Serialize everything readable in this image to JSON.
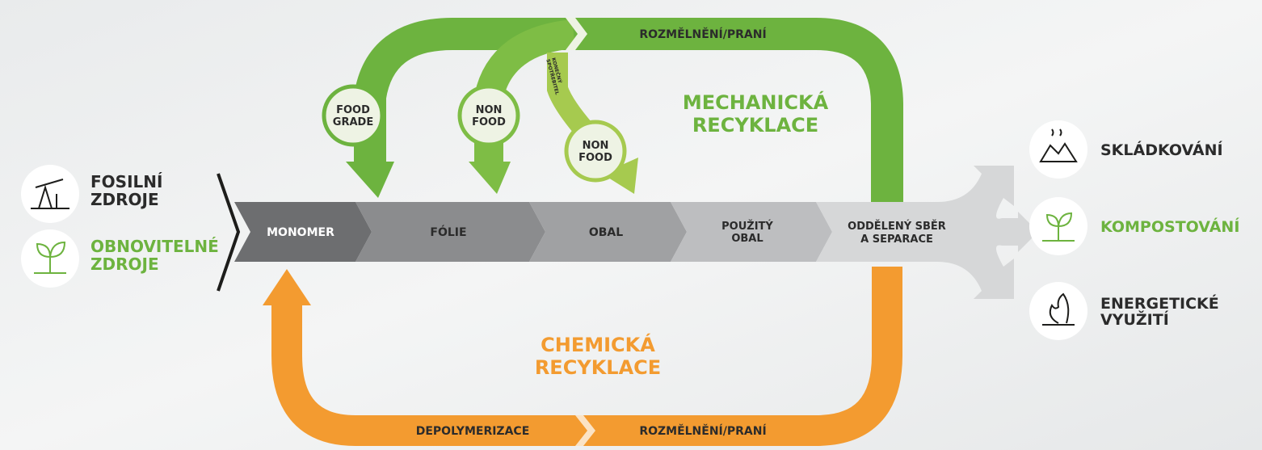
{
  "sources": {
    "fossil": [
      "FOSILNÍ",
      "ZDROJE"
    ],
    "renewable": [
      "OBNOVITELNÉ",
      "ZDROJE"
    ]
  },
  "chain": {
    "monomer": [
      "MONOMER"
    ],
    "foil": [
      "FÓLIE"
    ],
    "package": [
      "OBAL"
    ],
    "used_package": [
      "POUŽITÝ",
      "OBAL"
    ],
    "collection": [
      "ODDĚLENÝ SBĚR",
      "A SEPARACE"
    ]
  },
  "mechanical": {
    "title": [
      "MECHANICKÁ",
      "RECYKLACE"
    ],
    "band_label": "ROZMĚLNĚNÍ/PRANÍ",
    "food_grade": [
      "FOOD",
      "GRADE"
    ],
    "non_food_1": [
      "NON",
      "FOOD"
    ],
    "non_food_2": [
      "NON",
      "FOOD"
    ],
    "consumer": [
      "KONEČNÝ",
      "SPOTŘEBITEL"
    ]
  },
  "chemical": {
    "title": [
      "CHEMICKÁ",
      "RECYKLACE"
    ],
    "left_label": "DEPOLYMERIZACE",
    "right_label": "ROZMĚLNĚNÍ/PRANÍ"
  },
  "outputs": {
    "landfill": [
      "SKLÁDKOVÁNÍ"
    ],
    "compost": [
      "KOMPOSTOVÁNÍ"
    ],
    "energy": [
      "ENERGETICKÉ",
      "VYUŽITÍ"
    ]
  }
}
